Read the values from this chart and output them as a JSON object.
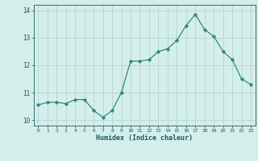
{
  "x": [
    0,
    1,
    2,
    3,
    4,
    5,
    6,
    7,
    8,
    9,
    10,
    11,
    12,
    13,
    14,
    15,
    16,
    17,
    18,
    19,
    20,
    21,
    22,
    23
  ],
  "y": [
    10.55,
    10.65,
    10.65,
    10.6,
    10.75,
    10.75,
    10.35,
    10.1,
    10.35,
    11.0,
    12.15,
    12.15,
    12.2,
    12.5,
    12.6,
    12.9,
    13.45,
    13.85,
    13.3,
    13.05,
    12.5,
    12.2,
    11.5,
    11.3
  ],
  "xlabel": "Humidex (Indice chaleur)",
  "line_color": "#2e8b7a",
  "marker_color": "#2e8b7a",
  "bg_color": "#d4eeec",
  "grid_color": "#b8d8d6",
  "tick_color": "#1a5a5a",
  "label_color": "#1a5a5a",
  "xlim": [
    -0.5,
    23.5
  ],
  "ylim": [
    9.8,
    14.2
  ],
  "yticks": [
    10,
    11,
    12,
    13,
    14
  ],
  "xticks": [
    0,
    1,
    2,
    3,
    4,
    5,
    6,
    7,
    8,
    9,
    10,
    11,
    12,
    13,
    14,
    15,
    16,
    17,
    18,
    19,
    20,
    21,
    22,
    23
  ]
}
